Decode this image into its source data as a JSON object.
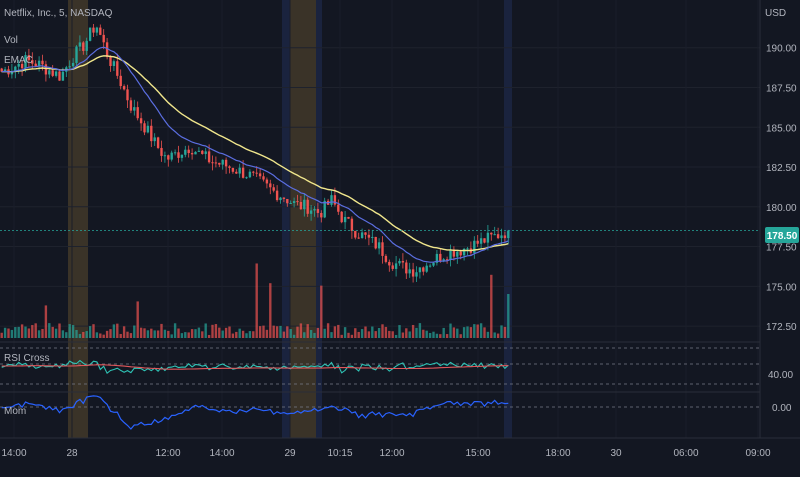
{
  "header": {
    "symbol": "Netflix, Inc., 5, NASDAQ",
    "indicator_vol": "Vol",
    "indicator_emac": "EMAC"
  },
  "price_axis": {
    "currency": "USD",
    "ticks": [
      "190.00",
      "187.50",
      "185.00",
      "182.50",
      "180.00",
      "177.50",
      "175.00",
      "172.50"
    ],
    "last_price": "178.50"
  },
  "rsi_pane": {
    "label": "RSI Cross",
    "tick": "40.00"
  },
  "mom_pane": {
    "label": "Mom",
    "tick": "0.00"
  },
  "time_axis": {
    "ticks": [
      "14:00",
      "28",
      "12:00",
      "14:00",
      "29",
      "10:15",
      "12:00",
      "15:00",
      "18:00",
      "30",
      "06:00",
      "09:00"
    ]
  },
  "colors": {
    "background": "#131722",
    "up": "#26a69a",
    "down": "#ef5350",
    "ema_fast": "#5b6ee1",
    "ema_slow": "#f0e68c",
    "rsi_line": "#2ec4b6",
    "rsi_signal": "#e0575b",
    "mom_line": "#2962ff",
    "session_band": "#5b4a2e",
    "extended_band": "#1e2a4a",
    "last_price_badge": "#26a69a"
  },
  "chart_data": {
    "type": "candlestick",
    "title": "Netflix, Inc., 5, NASDAQ",
    "price_range": [
      171.5,
      193
    ],
    "x_axis_ticks": [
      "14:00",
      "28",
      "12:00",
      "14:00",
      "29",
      "10:15",
      "12:00",
      "15:00",
      "18:00",
      "30",
      "06:00",
      "09:00"
    ],
    "price_path": [
      188.5,
      188.8,
      189.2,
      189.0,
      188.6,
      188.2,
      189.4,
      190.2,
      191.5,
      189.5,
      188.0,
      186.3,
      185.2,
      184.0,
      183.0,
      183.4,
      183.8,
      183.2,
      182.8,
      182.6,
      182.3,
      182.0,
      181.5,
      181.0,
      180.6,
      180.1,
      180.0,
      179.6,
      180.4,
      179.2,
      178.5,
      178.0,
      177.5,
      176.6,
      176.2,
      176.0,
      176.4,
      176.8,
      177.2,
      177.3,
      177.6,
      177.9,
      178.2,
      178.5
    ],
    "last_price": 178.5,
    "series": [
      {
        "name": "Vol",
        "type": "bar"
      },
      {
        "name": "EMAC",
        "type": "line"
      }
    ],
    "rsi": {
      "label": "RSI Cross",
      "tick": 40.0
    },
    "momentum": {
      "label": "Mom",
      "tick": 0.0
    }
  }
}
